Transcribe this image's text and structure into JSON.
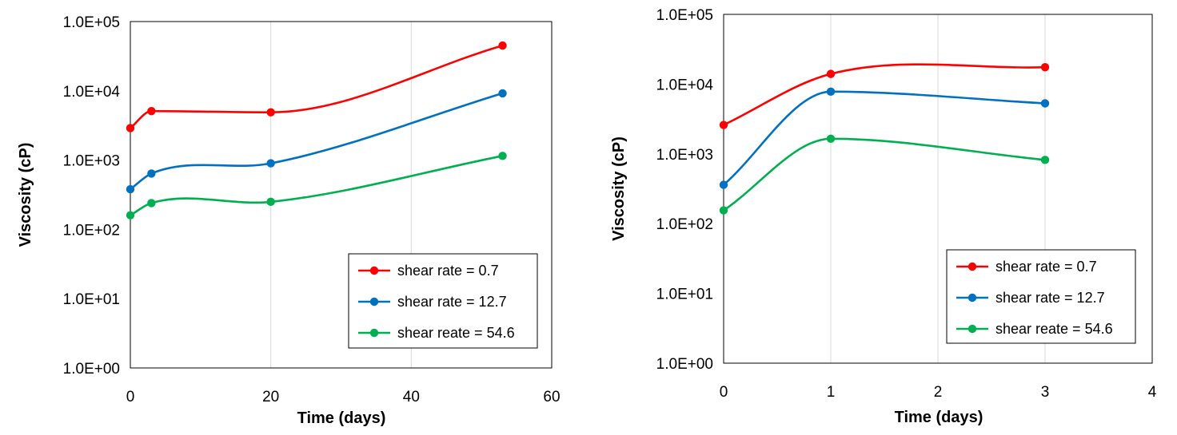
{
  "chart_data": [
    {
      "type": "line",
      "xlabel": "Time (days)",
      "ylabel": "Viscosity (cP)",
      "xlim": [
        0,
        60
      ],
      "xticks": [
        "0",
        "20",
        "40",
        "60"
      ],
      "yscale": "log",
      "ylim": [
        1,
        100000
      ],
      "yticks": [
        "1.0E+00",
        "1.0E+01",
        "1.0E+02",
        "1.0E+03",
        "1.0E+04",
        "1.0E+05"
      ],
      "grid": "vertical",
      "legend": "bottom-right",
      "x": [
        0,
        3,
        20,
        53
      ],
      "series": [
        {
          "name": "shear rate = 0.7",
          "color": "#ff0000",
          "values": [
            2900,
            5100,
            4900,
            45000
          ]
        },
        {
          "name": "shear rate = 12.7",
          "color": "#0070c0",
          "values": [
            380,
            640,
            900,
            9200
          ]
        },
        {
          "name": "shear reate = 54.6",
          "color": "#00b050",
          "values": [
            160,
            240,
            250,
            1150
          ]
        }
      ]
    },
    {
      "type": "line",
      "xlabel": "Time (days)",
      "ylabel": "Viscosity (cP)",
      "xlim": [
        0,
        4
      ],
      "xticks": [
        "0",
        "1",
        "2",
        "3",
        "4"
      ],
      "yscale": "log",
      "ylim": [
        1,
        100000
      ],
      "yticks": [
        "1.0E+00",
        "1.0E+01",
        "1.0E+02",
        "1.0E+03",
        "1.0E+04",
        "1.0E+05"
      ],
      "grid": "vertical",
      "legend": "bottom-right",
      "x": [
        0,
        1,
        3
      ],
      "series": [
        {
          "name": "shear rate = 0.7",
          "color": "#ff0000",
          "values": [
            2600,
            14000,
            17500
          ]
        },
        {
          "name": "shear rate = 12.7",
          "color": "#0070c0",
          "values": [
            360,
            7800,
            5300
          ]
        },
        {
          "name": "shear reate = 54.6",
          "color": "#00b050",
          "values": [
            155,
            1650,
            820
          ]
        }
      ]
    }
  ]
}
